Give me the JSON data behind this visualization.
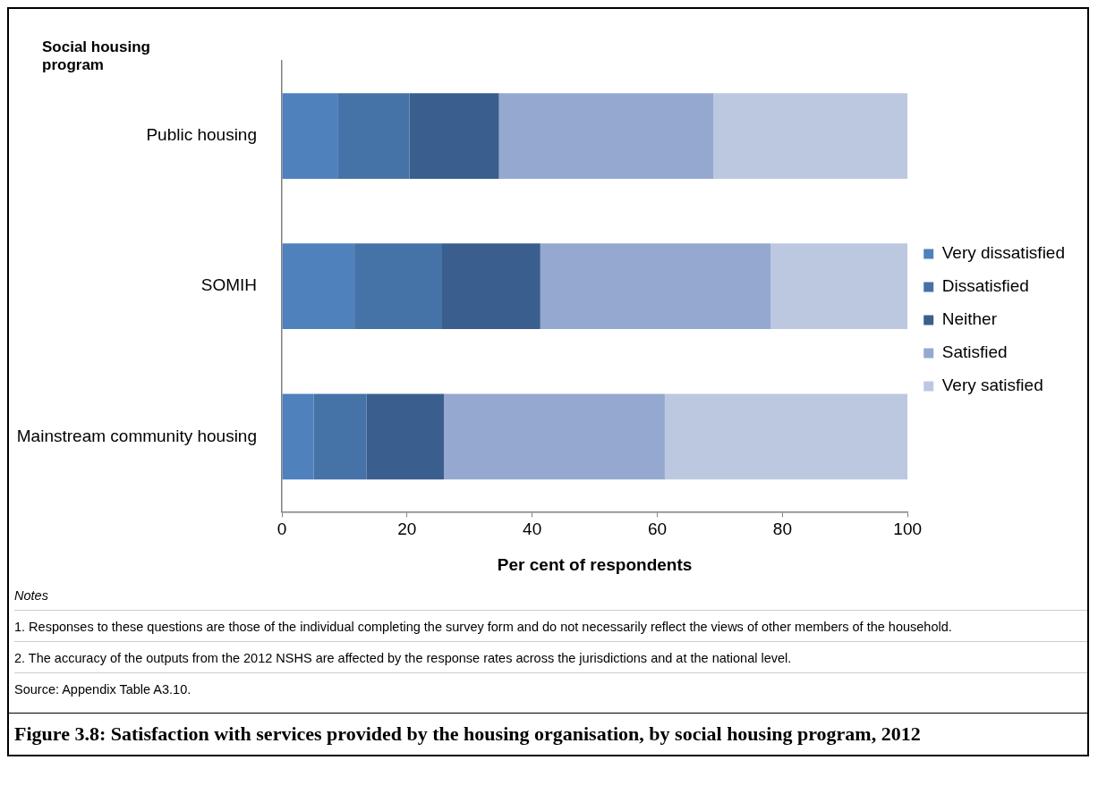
{
  "chart_data": {
    "type": "bar",
    "orientation": "horizontal",
    "stacked": true,
    "ylabel": "Social housing program",
    "xlabel": "Per cent of respondents",
    "title": "Figure 3.8: Satisfaction with services provided by the housing organisation, by social housing program, 2012",
    "categories": [
      "Public housing",
      "SOMIH",
      "Mainstream community housing"
    ],
    "series": [
      {
        "name": "Very dissatisfied",
        "color": "#4f81bd",
        "values": [
          9.0,
          11.6,
          5.1
        ]
      },
      {
        "name": "Dissatisfied",
        "color": "#4572a7",
        "values": [
          11.4,
          14.0,
          8.4
        ]
      },
      {
        "name": "Neither",
        "color": "#3a5f8e",
        "values": [
          14.3,
          15.7,
          12.4
        ]
      },
      {
        "name": "Satisfied",
        "color": "#95a9d0",
        "values": [
          34.3,
          36.8,
          35.3
        ]
      },
      {
        "name": "Very satisfied",
        "color": "#bcc8e0",
        "values": [
          31.0,
          21.9,
          38.8
        ]
      }
    ],
    "xlim": [
      0,
      100
    ],
    "xticks": [
      0,
      20,
      40,
      60,
      80,
      100
    ],
    "grid": false,
    "legend": "right",
    "annotations": [
      "Notes",
      "1. Responses to these questions are those of the individual completing the survey form and do not necessarily reflect the views of other members of the household.",
      "2. The accuracy of the outputs from the 2012 NSHS are affected by the response rates across the jurisdictions and at the national level.",
      "Source: Appendix Table A3.10."
    ]
  }
}
